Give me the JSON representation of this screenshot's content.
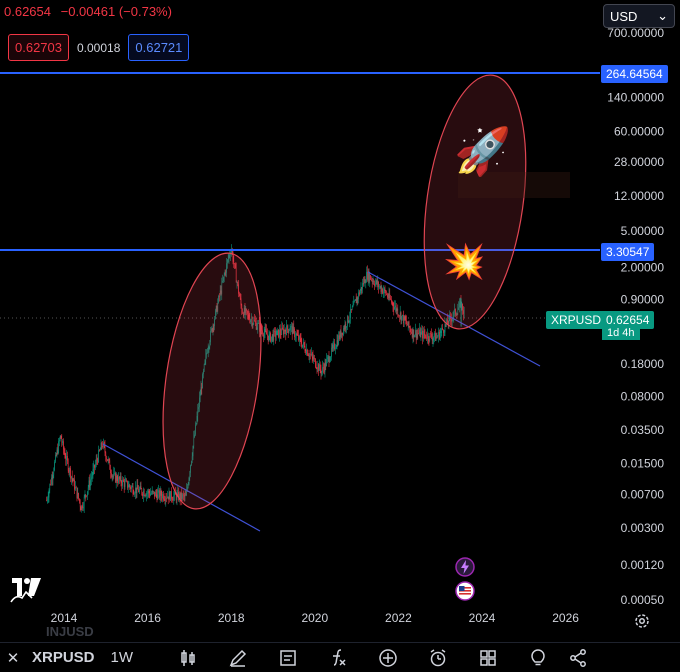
{
  "quote": {
    "price": "0.62654",
    "change": "−0.00461 (−0.73%)"
  },
  "bidask": {
    "bid": "0.62703",
    "spread": "0.00018",
    "ask": "0.62721"
  },
  "currency": {
    "value": "USD"
  },
  "price_axis": {
    "ticks": [
      "700.00000",
      "140.00000",
      "60.00000",
      "28.00000",
      "12.00000",
      "5.00000",
      "2.00000",
      "0.90000",
      "0.18000",
      "0.08000",
      "0.03500",
      "0.01500",
      "0.00700",
      "0.00300",
      "0.00120",
      "0.00050"
    ]
  },
  "time_axis": {
    "ticks": [
      "2014",
      "2016",
      "2018",
      "2020",
      "2022",
      "2024",
      "2026"
    ]
  },
  "tags": {
    "upper_line": "264.64564",
    "lower_line": "3.30547",
    "current_price": "0.62654",
    "symbol_tag": "XRPUSD",
    "countdown": "1d 4h"
  },
  "bottom_bar": {
    "symbol": "XRPUSD",
    "timeframe": "1W",
    "watermark": "INJUSD"
  },
  "colors": {
    "background": "#000000",
    "up": "#089981",
    "down": "#f23645",
    "hline": "#2962ff",
    "trendline": "#3f51d5",
    "ellipse": "#e04552"
  },
  "icons": [
    "candles-icon",
    "pencil-icon",
    "text-note-icon",
    "fx-indicator-icon",
    "plus-circle-icon",
    "alarm-clock-icon",
    "grid-icon",
    "lightbulb-icon",
    "share-icon"
  ],
  "chart_data": {
    "type": "candlestick",
    "symbol": "XRPUSD",
    "interval": "1W",
    "y_scale": "log",
    "ylim": [
      0.0003,
      1000
    ],
    "x_range": [
      "2013-06",
      "2026-08"
    ],
    "horizontal_lines": [
      264.64564,
      3.30547
    ],
    "series_approx_weekly_close": [
      {
        "x": "2013-08",
        "y": 0.006
      },
      {
        "x": "2013-12",
        "y": 0.03
      },
      {
        "x": "2014-01",
        "y": 0.02
      },
      {
        "x": "2014-06",
        "y": 0.005
      },
      {
        "x": "2014-12",
        "y": 0.025
      },
      {
        "x": "2015-03",
        "y": 0.011
      },
      {
        "x": "2015-09",
        "y": 0.008
      },
      {
        "x": "2016-03",
        "y": 0.007
      },
      {
        "x": "2016-12",
        "y": 0.0065
      },
      {
        "x": "2017-04",
        "y": 0.08
      },
      {
        "x": "2017-06",
        "y": 0.25
      },
      {
        "x": "2017-12",
        "y": 2.4
      },
      {
        "x": "2018-01",
        "y": 3.3
      },
      {
        "x": "2018-04",
        "y": 0.7
      },
      {
        "x": "2018-12",
        "y": 0.35
      },
      {
        "x": "2019-06",
        "y": 0.45
      },
      {
        "x": "2020-03",
        "y": 0.15
      },
      {
        "x": "2020-11",
        "y": 0.6
      },
      {
        "x": "2021-04",
        "y": 1.7
      },
      {
        "x": "2021-09",
        "y": 1.1
      },
      {
        "x": "2022-05",
        "y": 0.4
      },
      {
        "x": "2022-12",
        "y": 0.35
      },
      {
        "x": "2023-07",
        "y": 0.8
      },
      {
        "x": "2023-08",
        "y": 0.63
      }
    ],
    "annotations": [
      {
        "type": "trendline",
        "from": {
          "x": "2014-12",
          "y": 0.028
        },
        "to": {
          "x": "2018-08",
          "y": 0.0027
        }
      },
      {
        "type": "trendline",
        "from": {
          "x": "2021-04",
          "y": 1.8
        },
        "to": {
          "x": "2025-06",
          "y": 0.2
        }
      },
      {
        "type": "ellipse",
        "around": "2017 breakout"
      },
      {
        "type": "ellipse",
        "around": "2023-2024 target"
      }
    ]
  }
}
